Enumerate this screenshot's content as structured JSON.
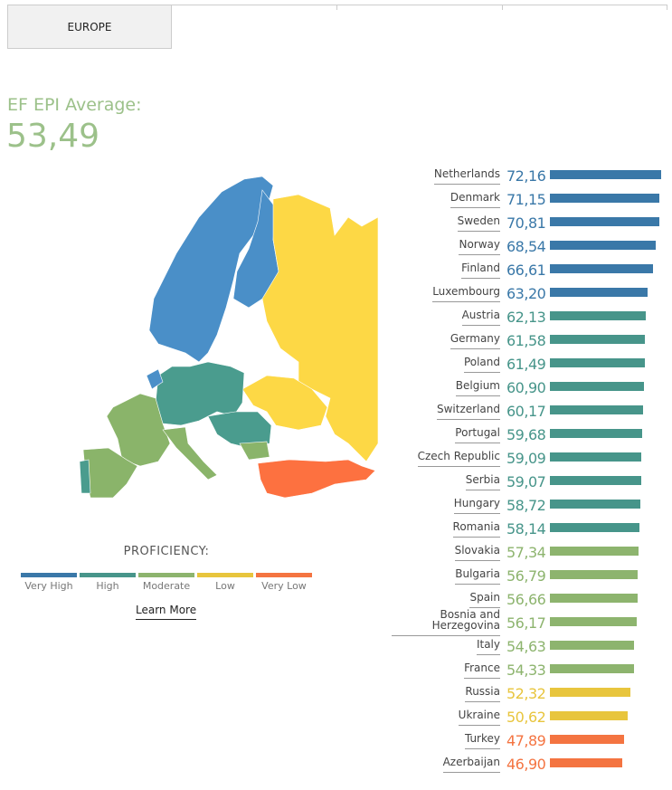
{
  "tabs": [
    {
      "label": "EUROPE",
      "active": true
    },
    {
      "label": ""
    },
    {
      "label": ""
    },
    {
      "label": ""
    }
  ],
  "average": {
    "label": "EF EPI Average:",
    "value": "53,49"
  },
  "colors": {
    "very_high": "#3a78a8",
    "high": "#47958a",
    "moderate": "#8db46e",
    "low": "#e8c53d",
    "very_low": "#f47441"
  },
  "legend": {
    "title": "PROFICIENCY:",
    "items": [
      {
        "label": "Very High",
        "level": "very_high"
      },
      {
        "label": "High",
        "level": "high"
      },
      {
        "label": "Moderate",
        "level": "moderate"
      },
      {
        "label": "Low",
        "level": "low"
      },
      {
        "label": "Very Low",
        "level": "very_low"
      }
    ]
  },
  "learn_more": "Learn More",
  "countries": [
    {
      "name": "Netherlands",
      "score": "72,16",
      "value": 72.16,
      "level": "very_high"
    },
    {
      "name": "Denmark",
      "score": "71,15",
      "value": 71.15,
      "level": "very_high"
    },
    {
      "name": "Sweden",
      "score": "70,81",
      "value": 70.81,
      "level": "very_high"
    },
    {
      "name": "Norway",
      "score": "68,54",
      "value": 68.54,
      "level": "very_high"
    },
    {
      "name": "Finland",
      "score": "66,61",
      "value": 66.61,
      "level": "very_high"
    },
    {
      "name": "Luxembourg",
      "score": "63,20",
      "value": 63.2,
      "level": "very_high"
    },
    {
      "name": "Austria",
      "score": "62,13",
      "value": 62.13,
      "level": "high"
    },
    {
      "name": "Germany",
      "score": "61,58",
      "value": 61.58,
      "level": "high"
    },
    {
      "name": "Poland",
      "score": "61,49",
      "value": 61.49,
      "level": "high"
    },
    {
      "name": "Belgium",
      "score": "60,90",
      "value": 60.9,
      "level": "high"
    },
    {
      "name": "Switzerland",
      "score": "60,17",
      "value": 60.17,
      "level": "high"
    },
    {
      "name": "Portugal",
      "score": "59,68",
      "value": 59.68,
      "level": "high"
    },
    {
      "name": "Czech Republic",
      "score": "59,09",
      "value": 59.09,
      "level": "high"
    },
    {
      "name": "Serbia",
      "score": "59,07",
      "value": 59.07,
      "level": "high"
    },
    {
      "name": "Hungary",
      "score": "58,72",
      "value": 58.72,
      "level": "high"
    },
    {
      "name": "Romania",
      "score": "58,14",
      "value": 58.14,
      "level": "high"
    },
    {
      "name": "Slovakia",
      "score": "57,34",
      "value": 57.34,
      "level": "moderate"
    },
    {
      "name": "Bulgaria",
      "score": "56,79",
      "value": 56.79,
      "level": "moderate"
    },
    {
      "name": "Spain",
      "score": "56,66",
      "value": 56.66,
      "level": "moderate"
    },
    {
      "name": "Bosnia and Herzegovina",
      "score": "56,17",
      "value": 56.17,
      "level": "moderate"
    },
    {
      "name": "Italy",
      "score": "54,63",
      "value": 54.63,
      "level": "moderate"
    },
    {
      "name": "France",
      "score": "54,33",
      "value": 54.33,
      "level": "moderate"
    },
    {
      "name": "Russia",
      "score": "52,32",
      "value": 52.32,
      "level": "low"
    },
    {
      "name": "Ukraine",
      "score": "50,62",
      "value": 50.62,
      "level": "low"
    },
    {
      "name": "Turkey",
      "score": "47,89",
      "value": 47.89,
      "level": "very_low"
    },
    {
      "name": "Azerbaijan",
      "score": "46,90",
      "value": 46.9,
      "level": "very_low"
    }
  ]
}
